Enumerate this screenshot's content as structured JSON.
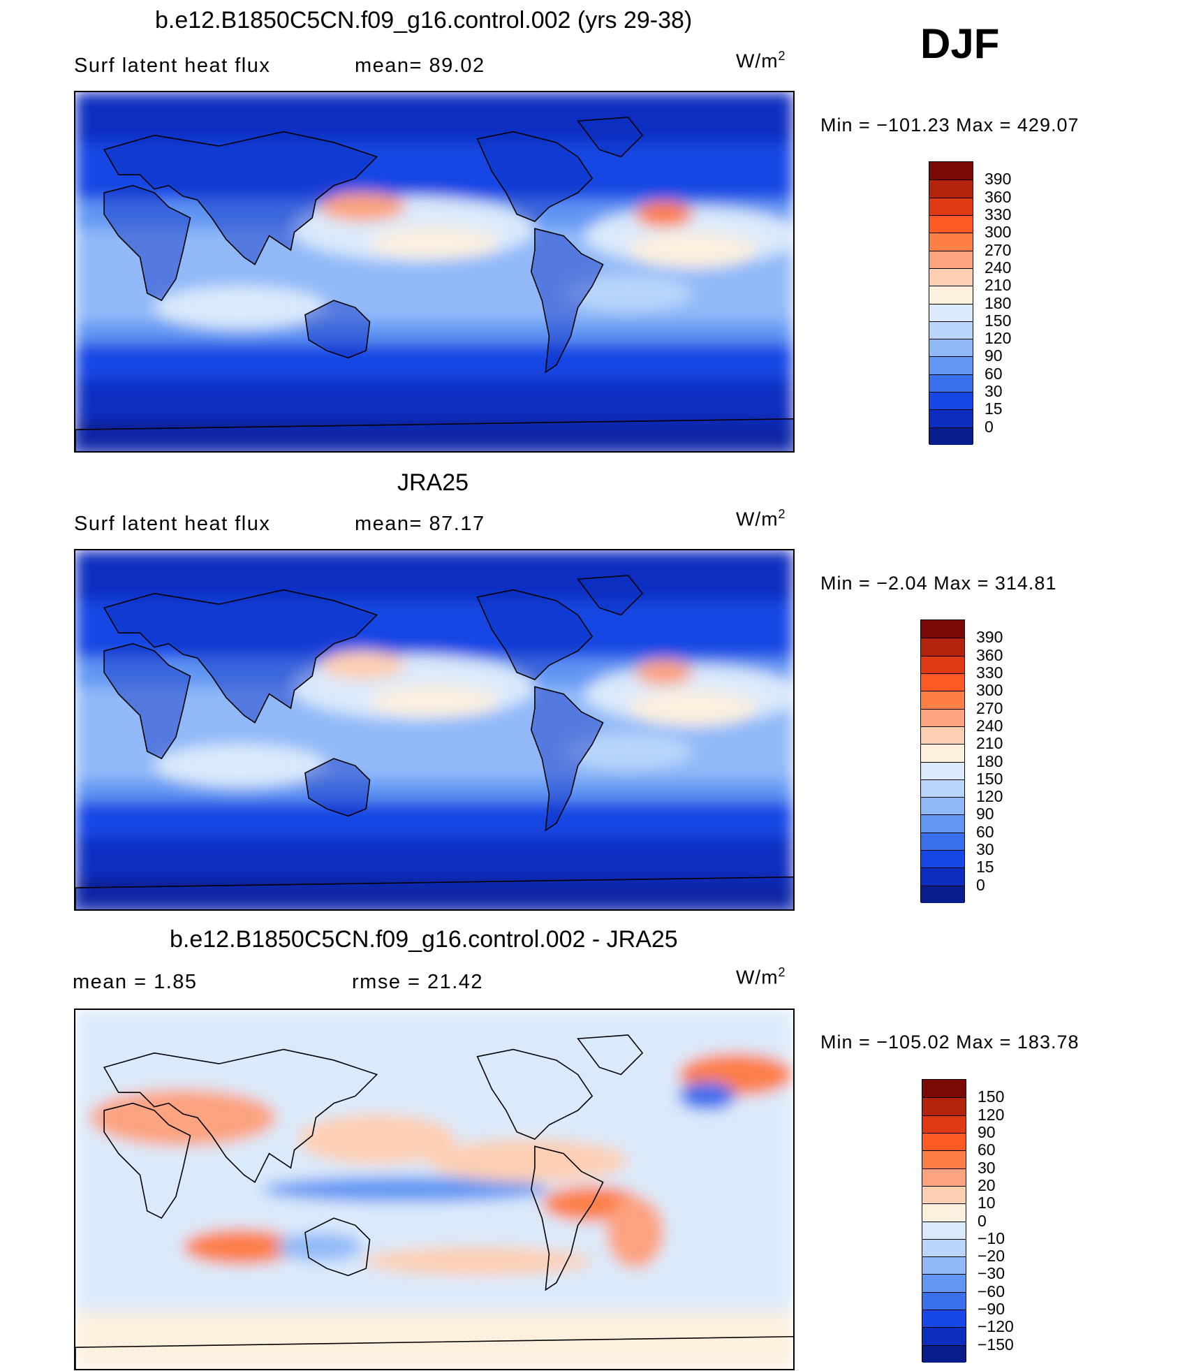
{
  "season": "DJF",
  "panels": [
    {
      "title": "b.e12.B1850C5CN.f09_g16.control.002 (yrs 29-38)",
      "subtitle_left": "Surf  latent  heat  flux",
      "subtitle_mid": "mean=   89.02",
      "units_base": "W/m",
      "units_exp": "2",
      "minmax": "Min  =  −101.23  Max  =  429.07",
      "palette": "abs",
      "legend": {
        "colors": [
          "#7a0a06",
          "#b4230b",
          "#e03a14",
          "#fd5a23",
          "#fd7f48",
          "#fca37f",
          "#fdcfb2",
          "#fdf0df",
          "#dbeafb",
          "#b9d5fa",
          "#91b9f8",
          "#6196f3",
          "#3a6fed",
          "#1747e4",
          "#0b2ec1",
          "#071d8c"
        ],
        "labels": [
          "390",
          "360",
          "330",
          "300",
          "270",
          "240",
          "210",
          "180",
          "150",
          "120",
          "90",
          "60",
          "30",
          "15",
          "0"
        ]
      }
    },
    {
      "title": "JRA25",
      "subtitle_left": "Surf  latent  heat  flux",
      "subtitle_mid": "mean=   87.17",
      "units_base": "W/m",
      "units_exp": "2",
      "minmax": "Min  =    −2.04  Max  =  314.81",
      "palette": "abs",
      "legend": {
        "colors": [
          "#7a0a06",
          "#b4230b",
          "#e03a14",
          "#fd5a23",
          "#fd7f48",
          "#fca37f",
          "#fdcfb2",
          "#fdf0df",
          "#dbeafb",
          "#b9d5fa",
          "#91b9f8",
          "#6196f3",
          "#3a6fed",
          "#1747e4",
          "#0b2ec1",
          "#071d8c"
        ],
        "labels": [
          "390",
          "360",
          "330",
          "300",
          "270",
          "240",
          "210",
          "180",
          "150",
          "120",
          "90",
          "60",
          "30",
          "15",
          "0"
        ]
      }
    },
    {
      "title": "b.e12.B1850C5CN.f09_g16.control.002 - JRA25",
      "subtitle_left": "mean  =      1.85",
      "subtitle_mid": "rmse  =    21.42",
      "units_base": "W/m",
      "units_exp": "2",
      "minmax": "Min  =  −105.02  Max  =  183.78",
      "palette": "diff",
      "legend": {
        "colors": [
          "#7a0a06",
          "#b4230b",
          "#e03a14",
          "#fd5a23",
          "#fd7f48",
          "#fca37f",
          "#fdcfb2",
          "#fdf0df",
          "#dbeafb",
          "#b9d5fa",
          "#91b9f8",
          "#6196f3",
          "#3a6fed",
          "#1747e4",
          "#0b2ec1",
          "#071d8c"
        ],
        "labels": [
          "150",
          "120",
          "90",
          "60",
          "30",
          "20",
          "10",
          "0",
          "−10",
          "−20",
          "−30",
          "−60",
          "−90",
          "−120",
          "−150"
        ]
      }
    }
  ]
}
